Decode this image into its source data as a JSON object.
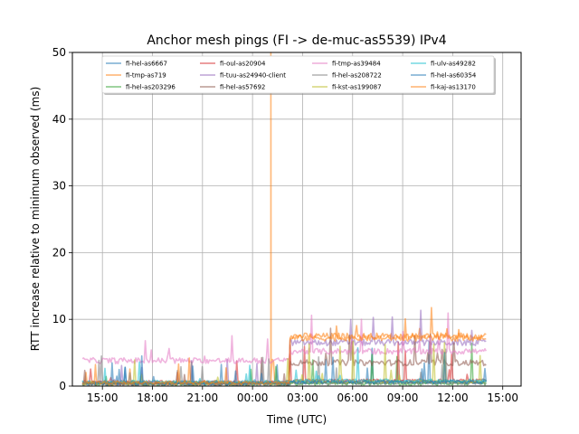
{
  "chart_data": {
    "type": "line",
    "title": "Anchor mesh pings (FI -> de-muc-as5539) IPv4",
    "xlabel": "Time (UTC)",
    "ylabel": "RTT increase relative to minimum observed (ms)",
    "x_unit": "hours since 00:00 UTC of day 2 (negative = previous day)",
    "x_ticks": [
      {
        "value": -9,
        "label": "15:00"
      },
      {
        "value": -6,
        "label": "18:00"
      },
      {
        "value": -3,
        "label": "21:00"
      },
      {
        "value": 0,
        "label": "00:00"
      },
      {
        "value": 3,
        "label": "03:00"
      },
      {
        "value": 6,
        "label": "06:00"
      },
      {
        "value": 9,
        "label": "09:00"
      },
      {
        "value": 12,
        "label": "12:00"
      },
      {
        "value": 15,
        "label": "15:00"
      }
    ],
    "xlim": [
      -10.8,
      16.1
    ],
    "ylim": [
      0,
      50
    ],
    "y_ticks": [
      0,
      10,
      20,
      30,
      40,
      50
    ],
    "grid": true,
    "legend_position": "upper-center",
    "legend_columns": 4,
    "series": [
      {
        "name": "fi-hel-as6667",
        "color": "#1f77b4",
        "base_before": 0.5,
        "base_after": 0.6,
        "start": -10.2,
        "end": 14.0
      },
      {
        "name": "fi-tmp-as719",
        "color": "#ff7f0e",
        "base_before": 0.4,
        "base_after": 7.5,
        "start": -10.2,
        "end": 14.0,
        "spike": {
          "x": 1.1,
          "y": 50
        }
      },
      {
        "name": "fi-hel-as203296",
        "color": "#2ca02c",
        "base_before": 0.3,
        "base_after": 0.4,
        "start": -10.2,
        "end": 14.0
      },
      {
        "name": "fi-oul-as20904",
        "color": "#d62728",
        "base_before": 0.6,
        "base_after": 0.8,
        "start": -10.2,
        "end": 14.0
      },
      {
        "name": "fi-tuu-as24940-client",
        "color": "#9467bd",
        "base_before": 0.5,
        "base_after": 6.5,
        "start": -10.2,
        "end": 14.0
      },
      {
        "name": "fi-hel-as57692",
        "color": "#8c564b",
        "base_before": 0.4,
        "base_after": 3.5,
        "start": -10.2,
        "end": 14.0
      },
      {
        "name": "fi-tmp-as39484",
        "color": "#e377c2",
        "base_before": 3.8,
        "base_after": 5.2,
        "start": -10.2,
        "end": 14.0
      },
      {
        "name": "fi-hel-as208722",
        "color": "#7f7f7f",
        "base_before": 0.3,
        "base_after": 0.5,
        "start": -10.2,
        "end": 14.0
      },
      {
        "name": "fi-kst-as199087",
        "color": "#bcbd22",
        "base_before": 0.5,
        "base_after": 0.7,
        "start": -10.2,
        "end": 14.0
      },
      {
        "name": "fi-ulv-as49282",
        "color": "#17becf",
        "base_before": 0.6,
        "base_after": 0.8,
        "start": -10.2,
        "end": 14.0
      },
      {
        "name": "fi-hel-as60354",
        "color": "#1f77b4",
        "base_before": 0.4,
        "base_after": 0.6,
        "start": -10.2,
        "end": 14.0
      },
      {
        "name": "fi-kaj-as13170",
        "color": "#ff7f0e",
        "base_before": 0.5,
        "base_after": 7.2,
        "start": -10.2,
        "end": 14.0
      }
    ]
  }
}
